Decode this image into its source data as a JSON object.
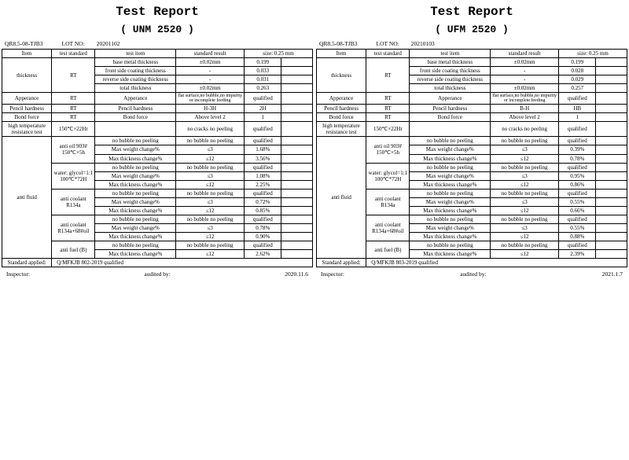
{
  "reports": [
    {
      "title": "Test Report",
      "subtitle": "( UNM 2520 )",
      "doc": "QR8.5-08-TJB3",
      "lotLabel": "LOT NO:",
      "lotNo": "20201102",
      "header": {
        "c1": "Item",
        "c2": "test standard",
        "c3": "test item",
        "c4": "standard result",
        "c5": "size: 0.25 mm"
      },
      "thickness": {
        "label": "thickness",
        "std": "RT",
        "rows": [
          {
            "t": "base metal thickness",
            "s": "±0.02mm",
            "v": "0.199"
          },
          {
            "t": "front side coating thickness",
            "s": "-",
            "v": "0.033"
          },
          {
            "t": "reverse side coating thickness",
            "s": "-",
            "v": "0.031"
          },
          {
            "t": "total thickness",
            "s": "±0.02mm",
            "v": "0.263"
          }
        ]
      },
      "appearance": {
        "label": "Apperance",
        "std": "RT",
        "t": "Apperance",
        "s": "flat surface,no bubble,no impurity or incomplete feeding",
        "v": "qualified"
      },
      "pencil": {
        "label": "Pencil hardness",
        "std": "RT",
        "t": "Pencil hardness",
        "s": "H-3H",
        "v": "2H"
      },
      "bond": {
        "label": "Bond force",
        "std": "RT",
        "t": "Bond force",
        "s": "Above level 2",
        "v": "1"
      },
      "hitemp": {
        "label": "high temperature resistance test",
        "std": "150℃×22Hr",
        "s": "no cracks  no peeling",
        "v": "qualified"
      },
      "antifluid": {
        "label": "anti fluid",
        "groups": [
          {
            "std": "anti oil 903# 150℃×5h",
            "rows": [
              {
                "t": "no bubble  no peeling",
                "s": "no bubble  no peeling",
                "v": "qualified"
              },
              {
                "t": "Max weight change%",
                "s": "≤3",
                "v": "1.68%"
              },
              {
                "t": "Max thickness change%",
                "s": "≤12",
                "v": "3.56%"
              }
            ]
          },
          {
            "std": "water: glycol=1:1 100℃*72H",
            "rows": [
              {
                "t": "no bubble  no peeling",
                "s": "no bubble  no peeling",
                "v": "qualified"
              },
              {
                "t": "Max weight change%",
                "s": "≤3",
                "v": "1.08%"
              },
              {
                "t": "Max thickness change%",
                "s": "≤12",
                "v": "2.25%"
              }
            ]
          },
          {
            "std": "anti coolant R134a",
            "rows": [
              {
                "t": "no bubble  no peeling",
                "s": "no bubble  no peeling",
                "v": "qualified"
              },
              {
                "t": "Max weight change%",
                "s": "≤3",
                "v": "0.72%"
              },
              {
                "t": "Max thickness change%",
                "s": "≤12",
                "v": "0.85%"
              }
            ]
          },
          {
            "std": "anti coolant R134a+68#oil",
            "rows": [
              {
                "t": "no bubble  no peeling",
                "s": "no bubble  no peeling",
                "v": "qualified"
              },
              {
                "t": "Max weight change%",
                "s": "≤3",
                "v": "0.78%"
              },
              {
                "t": "Max thickness change%",
                "s": "≤12",
                "v": "0.90%"
              }
            ]
          },
          {
            "std": "anti fuel (B)",
            "rows": [
              {
                "t": "no bubble  no peeling",
                "s": "no bubble  no peeling",
                "v": "qualified"
              },
              {
                "t": "Max thickness change%",
                "s": "≤12",
                "v": "2.62%"
              }
            ]
          }
        ]
      },
      "stdApplied": {
        "label": "Standard applied:",
        "v": "Q/MFKJB 802-2019  qualified"
      },
      "footer": {
        "inspector": "Inspector:",
        "audited": "audited by:",
        "date": "2020.11.6"
      }
    },
    {
      "title": "Test Report",
      "subtitle": "( UFM 2520 )",
      "doc": "QR8.5-08-TJB3",
      "lotLabel": "LOT NO:",
      "lotNo": "20210103",
      "header": {
        "c1": "Item",
        "c2": "test standard",
        "c3": "test item",
        "c4": "standard result",
        "c5": "size: 0.25 mm"
      },
      "thickness": {
        "label": "thickness",
        "std": "RT",
        "rows": [
          {
            "t": "base metal thickness",
            "s": "±0.02mm",
            "v": "0.199"
          },
          {
            "t": "front side coating thickness",
            "s": "-",
            "v": "0.028"
          },
          {
            "t": "reverse side coating thickness",
            "s": "-",
            "v": "0.029"
          },
          {
            "t": "total thickness",
            "s": "±0.02mm",
            "v": "0.257"
          }
        ]
      },
      "appearance": {
        "label": "Apperance",
        "std": "RT",
        "t": "Apperance",
        "s": "flat surface,no bubble,no impurity or incomplete feeding",
        "v": "qualified"
      },
      "pencil": {
        "label": "Pencil hardness",
        "std": "RT",
        "t": "Pencil hardness",
        "s": "B-H",
        "v": "HB"
      },
      "bond": {
        "label": "Bond force",
        "std": "RT",
        "t": "Bond force",
        "s": "Above level 2",
        "v": "1"
      },
      "hitemp": {
        "label": "high temperature resistance test",
        "std": "150℃×22Hr",
        "s": "no cracks  no peeling",
        "v": "qualified"
      },
      "antifluid": {
        "label": "anti fluid",
        "groups": [
          {
            "std": "anti oil 903# 150℃×5h",
            "rows": [
              {
                "t": "no bubble  no peeling",
                "s": "no bubble  no peeling",
                "v": "qualified"
              },
              {
                "t": "Max weight change%",
                "s": "≤3",
                "v": "0.39%"
              },
              {
                "t": "Max thickness change%",
                "s": "≤12",
                "v": "0.78%"
              }
            ]
          },
          {
            "std": "water: glycol=1:1 100℃*72H",
            "rows": [
              {
                "t": "no bubble  no peeling",
                "s": "no bubble  no peeling",
                "v": "qualified"
              },
              {
                "t": "Max weight change%",
                "s": "≤3",
                "v": "0.95%"
              },
              {
                "t": "Max thickness change%",
                "s": "≤12",
                "v": "0.86%"
              }
            ]
          },
          {
            "std": "anti coolant R134a",
            "rows": [
              {
                "t": "no bubble  no peeling",
                "s": "no bubble  no peeling",
                "v": "qualified"
              },
              {
                "t": "Max weight change%",
                "s": "≤3",
                "v": "0.55%"
              },
              {
                "t": "Max thickness change%",
                "s": "≤12",
                "v": "0.66%"
              }
            ]
          },
          {
            "std": "anti coolant R134a+68#oil",
            "rows": [
              {
                "t": "no bubble  no peeling",
                "s": "no bubble  no peeling",
                "v": "qualified"
              },
              {
                "t": "Max weight change%",
                "s": "≤3",
                "v": "0.55%"
              },
              {
                "t": "Max thickness change%",
                "s": "≤12",
                "v": "0.88%"
              }
            ]
          },
          {
            "std": "anti fuel (B)",
            "rows": [
              {
                "t": "no bubble  no peeling",
                "s": "no bubble  no peeling",
                "v": "qualified"
              },
              {
                "t": "Max thickness change%",
                "s": "≤12",
                "v": "2.39%"
              }
            ]
          }
        ]
      },
      "stdApplied": {
        "label": "Standard applied:",
        "v": "Q/MFKJB 803-2019  qualified"
      },
      "footer": {
        "inspector": "Inspector:",
        "audited": "audited by:",
        "date": "2021.1.7"
      }
    }
  ]
}
